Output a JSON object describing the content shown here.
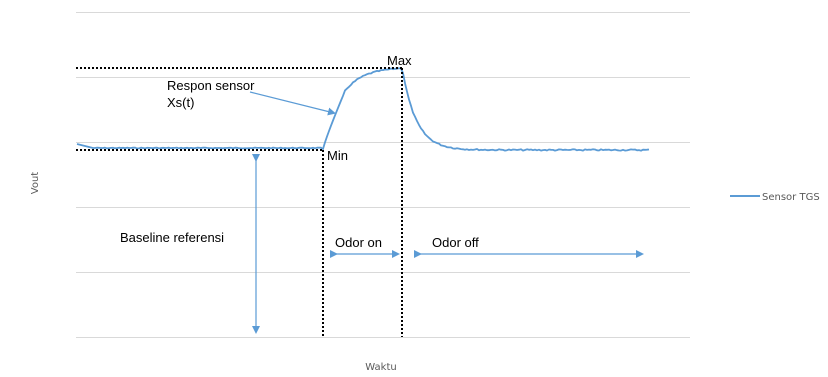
{
  "chart_data": {
    "type": "line",
    "xlabel": "Waktu",
    "ylabel": "Vout",
    "grid": true,
    "legend_position": "right",
    "series": [
      {
        "name": "Sensor TGS",
        "color": "#5b9bd5"
      }
    ],
    "annotations": {
      "max": "Max",
      "min": "Min",
      "respon_line1": "Respon sensor",
      "respon_line2": "Xs(t)",
      "baseline": "Baseline referensi",
      "odor_on": "Odor on",
      "odor_off": "Odor off"
    }
  }
}
